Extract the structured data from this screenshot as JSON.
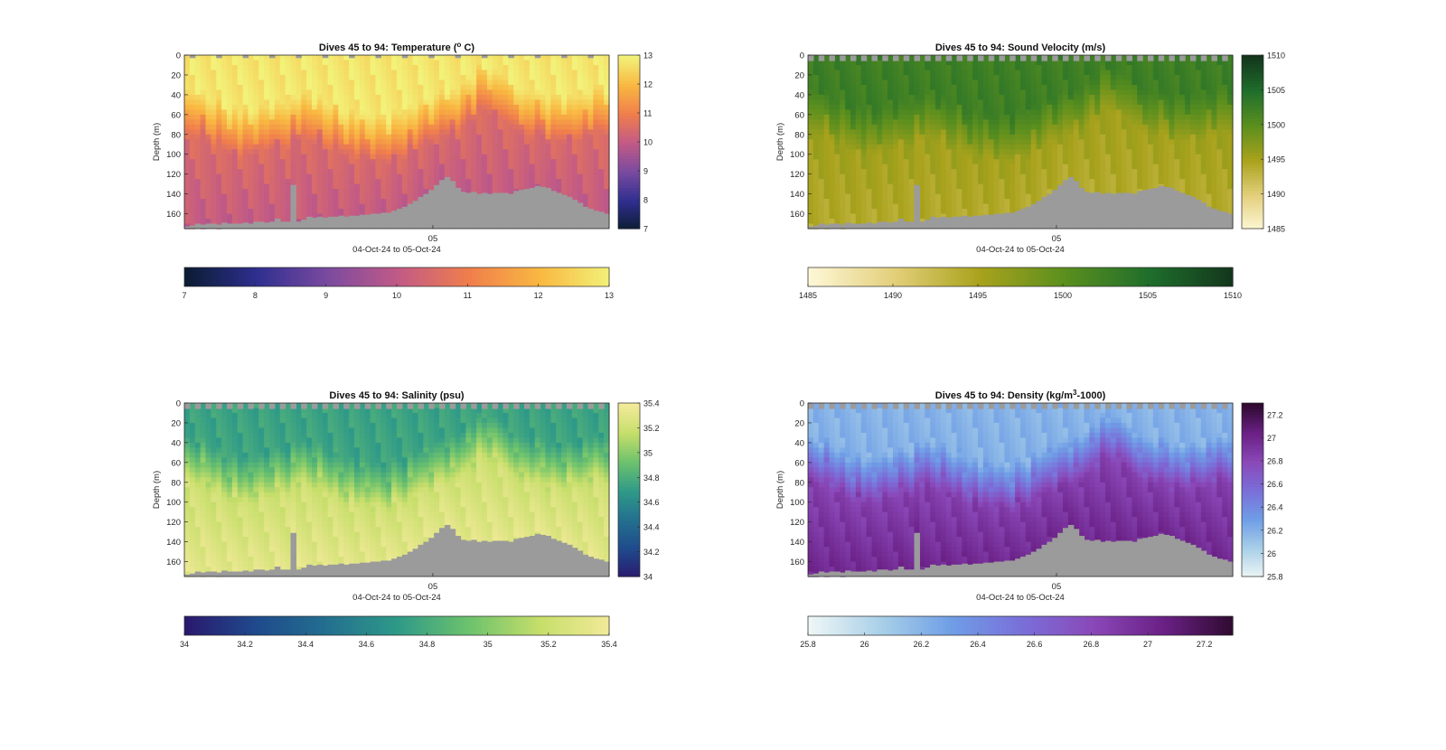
{
  "figure": {
    "date_tick": "05",
    "date_range_label": "04-Oct-24 to 05-Oct-24",
    "depth_axis_label": "Depth (m)",
    "bottom_mask_color": "#9b9b9b"
  },
  "chart_data": [
    {
      "id": "temperature",
      "type": "heatmap",
      "title": "Dives 45 to 94: Temperature (° C)",
      "title_parts": [
        "Dives 45 to 94: Temperature (",
        "o",
        " C)"
      ],
      "xlabel": "04-Oct-24 to 05-Oct-24",
      "ylabel": "Depth (m)",
      "x_tick_labels": [
        "05"
      ],
      "y_ticks": [
        0,
        20,
        40,
        60,
        80,
        100,
        120,
        140,
        160
      ],
      "ylim": [
        0,
        175
      ],
      "clim": [
        7,
        13
      ],
      "colorbar_ticks_right": [
        7,
        8,
        9,
        10,
        11,
        12,
        13
      ],
      "colorbar_ticks_bottom": [
        7,
        8,
        9,
        10,
        11,
        12,
        13
      ],
      "colormap": [
        "#0b1c33",
        "#2f2f8f",
        "#7a4aa0",
        "#c25a86",
        "#f07e4c",
        "#f9b841",
        "#f2f27a"
      ],
      "profile_note": "warm upper layer (~12.8) above ~50 m, cooling to ~10 near bottom",
      "surface_value": 12.8,
      "bottom_value": 10.0,
      "transition_depth": [
        55,
        62,
        68,
        75,
        70,
        64,
        58,
        60,
        66,
        72,
        78,
        80,
        74,
        68,
        60,
        52,
        40,
        30,
        35,
        48,
        55,
        60,
        58,
        55,
        52
      ]
    },
    {
      "id": "sound_velocity",
      "type": "heatmap",
      "title": "Dives 45 to 94: Sound Velocity (m/s)",
      "title_parts": [
        "Dives 45 to 94: Sound Velocity (m/s)"
      ],
      "xlabel": "04-Oct-24 to 05-Oct-24",
      "ylabel": "Depth (m)",
      "x_tick_labels": [
        "05"
      ],
      "y_ticks": [
        0,
        20,
        40,
        60,
        80,
        100,
        120,
        140,
        160
      ],
      "ylim": [
        0,
        175
      ],
      "clim": [
        1485,
        1510
      ],
      "colorbar_ticks_right": [
        1485,
        1490,
        1495,
        1500,
        1505,
        1510
      ],
      "colorbar_ticks_bottom": [
        1485,
        1490,
        1495,
        1500,
        1505,
        1510
      ],
      "colormap": [
        "#fdf7d6",
        "#e3cf7a",
        "#a9a21c",
        "#5b8f1e",
        "#1f6e2c",
        "#13351c"
      ],
      "surface_value": 1502.5,
      "bottom_value": 1494.0,
      "transition_depth": [
        55,
        62,
        68,
        75,
        70,
        64,
        58,
        60,
        66,
        72,
        78,
        80,
        74,
        68,
        60,
        52,
        40,
        30,
        35,
        48,
        55,
        60,
        58,
        55,
        52
      ]
    },
    {
      "id": "salinity",
      "type": "heatmap",
      "title": "Dives 45 to 94: Salinity (psu)",
      "title_parts": [
        "Dives 45 to 94: Salinity (psu)"
      ],
      "xlabel": "04-Oct-24 to 05-Oct-24",
      "ylabel": "Depth (m)",
      "x_tick_labels": [
        "05"
      ],
      "y_ticks": [
        0,
        20,
        40,
        60,
        80,
        100,
        120,
        140,
        160
      ],
      "ylim": [
        0,
        175
      ],
      "clim": [
        34,
        35.4
      ],
      "colorbar_ticks_right": [
        34,
        34.2,
        34.4,
        34.6,
        34.8,
        35,
        35.2,
        35.4
      ],
      "colorbar_ticks_bottom": [
        34,
        34.2,
        34.4,
        34.6,
        34.8,
        35,
        35.2,
        35.4
      ],
      "colormap": [
        "#2a1a6e",
        "#1f4a8c",
        "#23708f",
        "#2f9a88",
        "#6dc26d",
        "#c6de6a",
        "#f3ea9a"
      ],
      "surface_value": 34.75,
      "bottom_value": 35.32,
      "transition_depth": [
        55,
        62,
        68,
        75,
        70,
        64,
        58,
        60,
        66,
        72,
        78,
        80,
        74,
        68,
        60,
        52,
        40,
        30,
        35,
        48,
        55,
        60,
        58,
        55,
        52
      ]
    },
    {
      "id": "density",
      "type": "heatmap",
      "title": "Dives 45 to 94: Density (kg/m³-1000)",
      "title_parts": [
        "Dives 45 to 94: Density (kg/m",
        "3",
        "-1000)"
      ],
      "xlabel": "04-Oct-24 to 05-Oct-24",
      "ylabel": "Depth (m)",
      "x_tick_labels": [
        "05"
      ],
      "y_ticks": [
        0,
        20,
        40,
        60,
        80,
        100,
        120,
        140,
        160
      ],
      "ylim": [
        0,
        175
      ],
      "clim": [
        25.8,
        27.3
      ],
      "colorbar_ticks_right": [
        25.8,
        26,
        26.2,
        26.4,
        26.6,
        26.8,
        27,
        27.2
      ],
      "colorbar_ticks_bottom": [
        25.8,
        26,
        26.2,
        26.4,
        26.6,
        26.8,
        27,
        27.2
      ],
      "colormap": [
        "#eef6f6",
        "#a9d0e8",
        "#6f9ee6",
        "#7a6fd9",
        "#8a48b8",
        "#6a2085",
        "#2e0a2e"
      ],
      "surface_value": 26.2,
      "bottom_value": 27.0,
      "transition_depth": [
        55,
        62,
        68,
        75,
        70,
        64,
        58,
        60,
        66,
        72,
        78,
        80,
        74,
        68,
        60,
        52,
        40,
        30,
        35,
        48,
        55,
        60,
        58,
        55,
        52
      ]
    }
  ],
  "bottom_profile": {
    "note": "seafloor / data cut-off depth per dive column (m), shared by all panels",
    "depths": [
      173,
      172,
      170,
      171,
      170,
      170,
      171,
      169,
      170,
      170,
      170,
      169,
      170,
      168,
      168,
      169,
      168,
      165,
      168,
      168,
      131,
      168,
      166,
      163,
      164,
      163,
      164,
      163,
      163,
      162,
      163,
      162,
      162,
      161,
      161,
      160,
      160,
      159,
      159,
      157,
      155,
      153,
      150,
      147,
      143,
      140,
      136,
      131,
      126,
      123,
      127,
      134,
      138,
      139,
      138,
      140,
      139,
      140,
      139,
      139,
      139,
      140,
      137,
      136,
      135,
      134,
      132,
      133,
      134,
      137,
      139,
      141,
      143,
      146,
      149,
      153,
      155,
      157,
      158,
      160
    ]
  }
}
